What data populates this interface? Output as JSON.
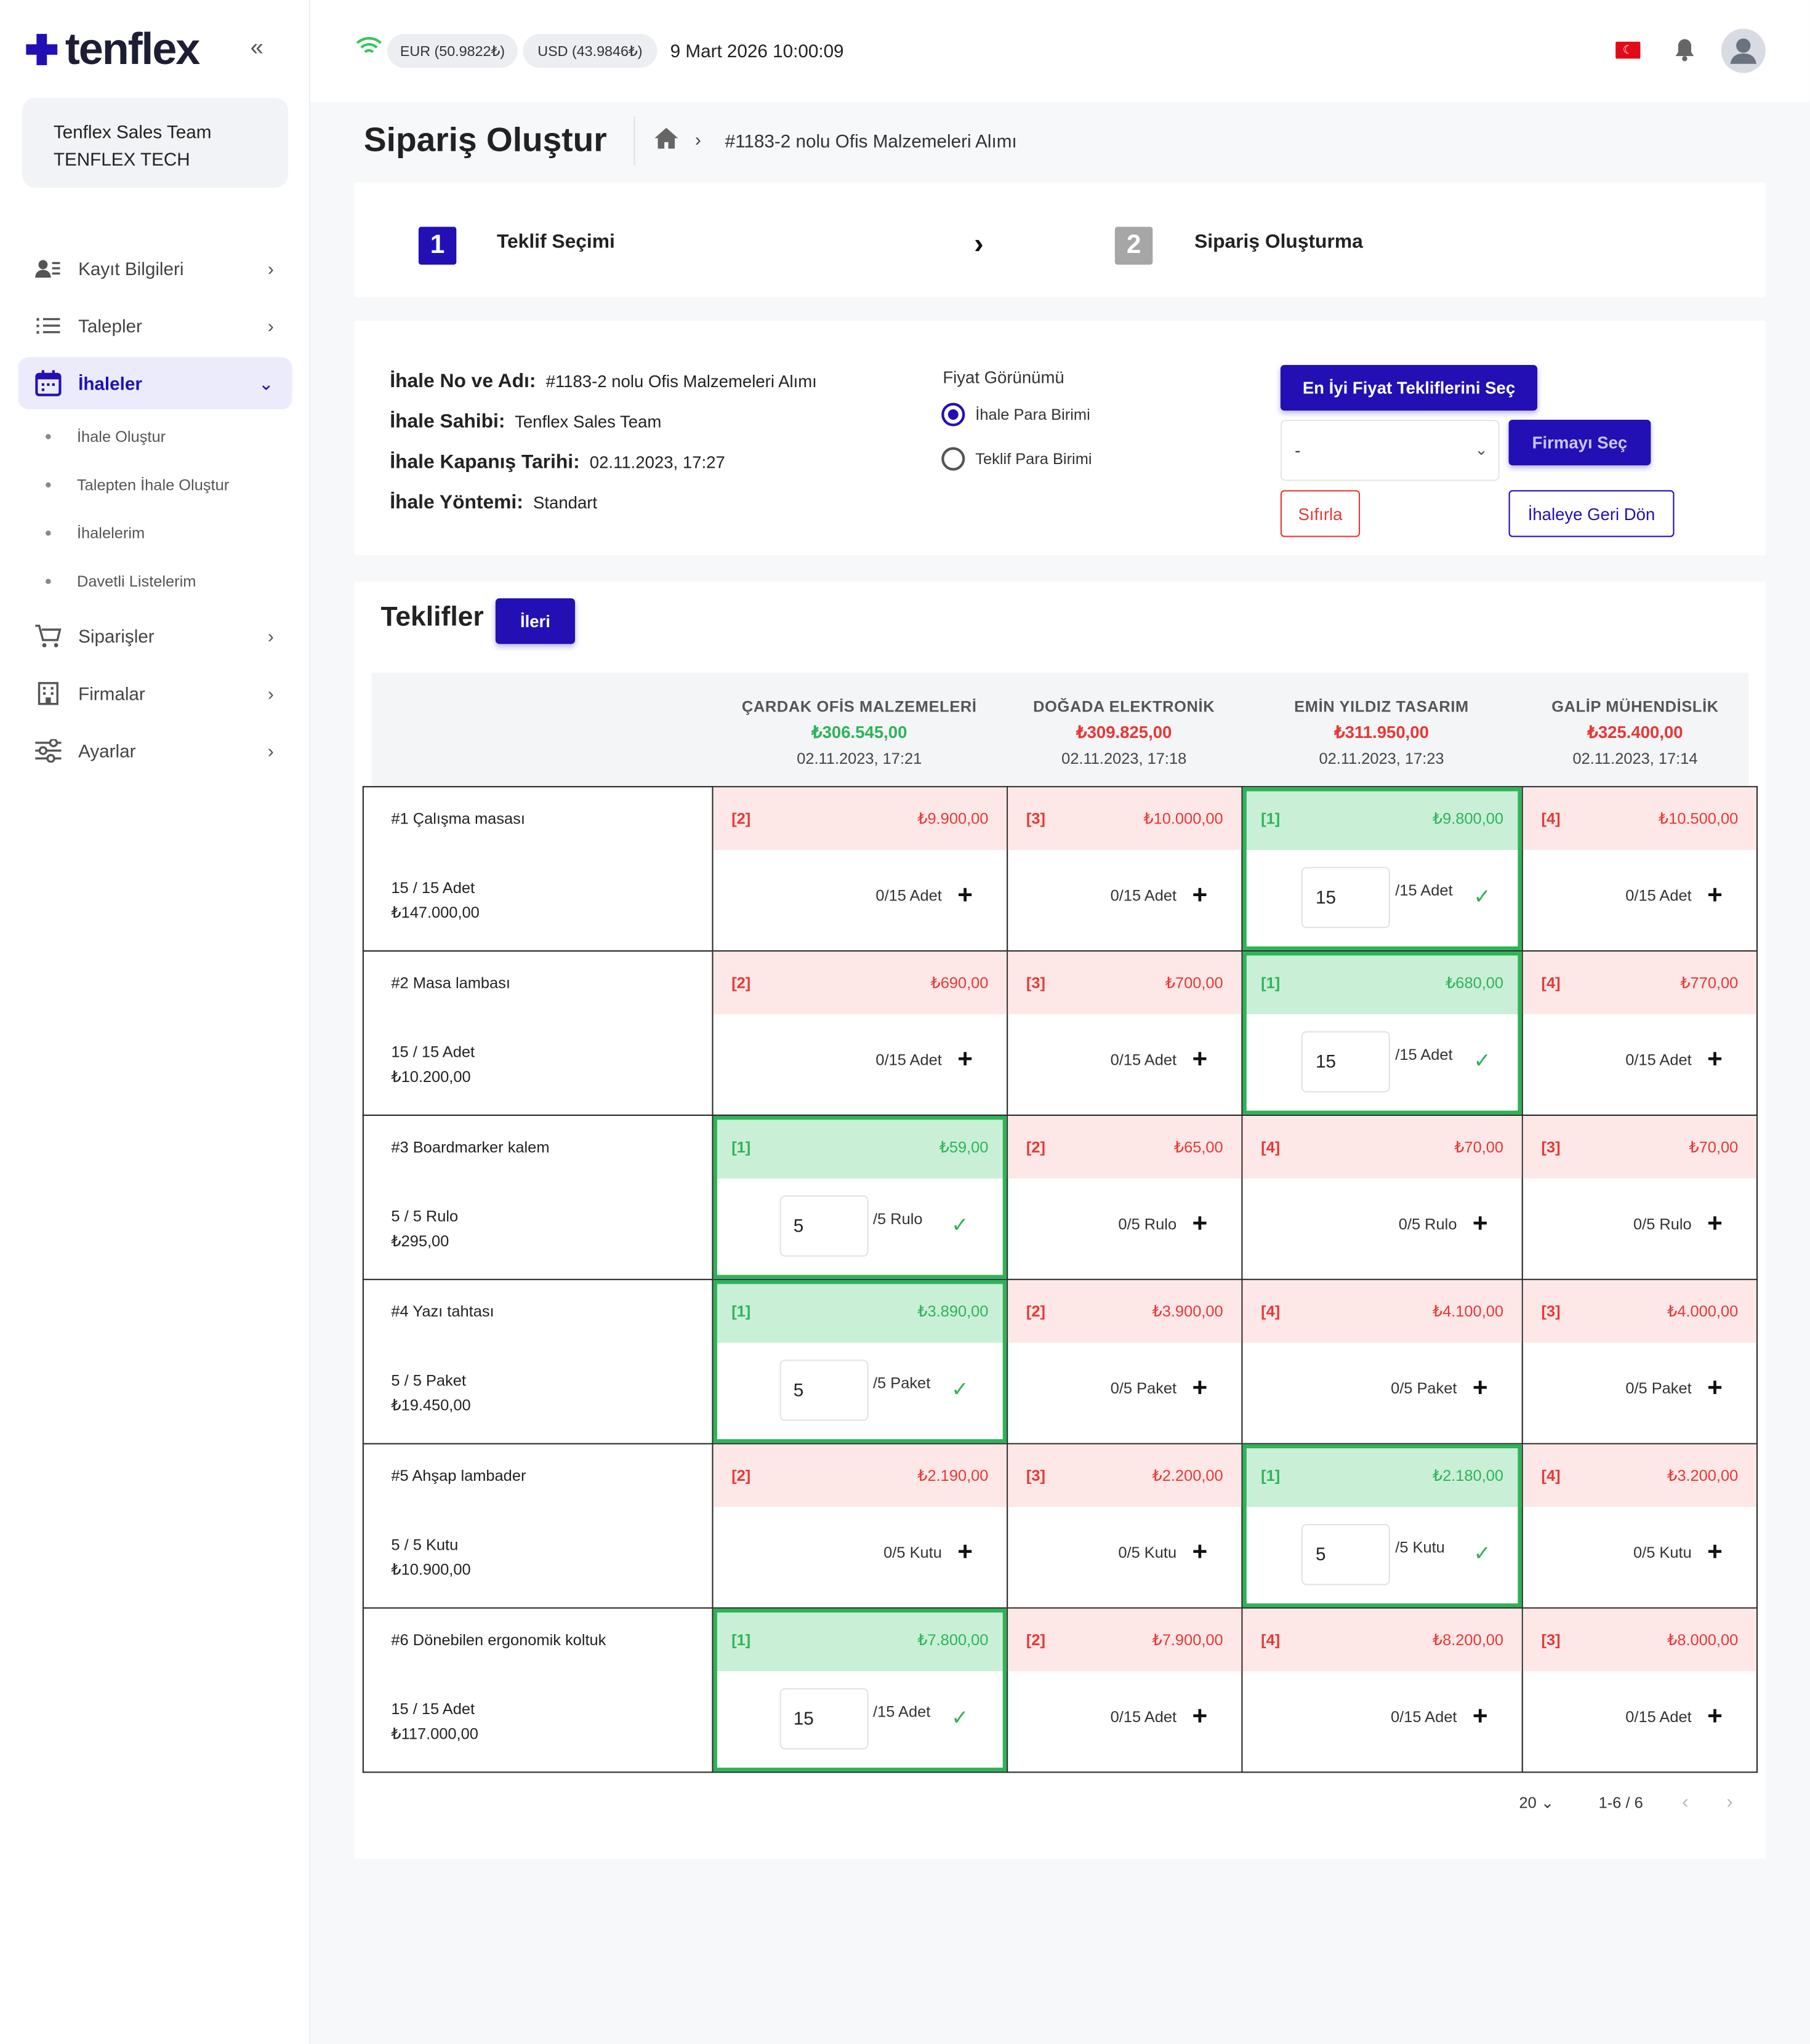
{
  "app": {
    "name": "tenflex"
  },
  "sidebar": {
    "team": {
      "name": "Tenflex Sales Team",
      "org": "TENFLEX TECH"
    },
    "items": [
      {
        "label": "Kayıt Bilgileri"
      },
      {
        "label": "Talepler"
      },
      {
        "label": "İhaleler"
      },
      {
        "label": "Siparişler"
      },
      {
        "label": "Firmalar"
      },
      {
        "label": "Ayarlar"
      }
    ],
    "subitems": [
      "İhale Oluştur",
      "Talepten İhale Oluştur",
      "İhalelerim",
      "Davetli Listelerim"
    ]
  },
  "topbar": {
    "eur": "EUR (50.9822₺)",
    "usd": "USD (43.9846₺)",
    "datetime": "9 Mart 2026 10:00:09"
  },
  "page": {
    "title": "Sipariş Oluştur",
    "breadcrumb": "#1183-2 nolu Ofis Malzemeleri Alımı"
  },
  "steps": [
    {
      "num": "1",
      "label": "Teklif Seçimi"
    },
    {
      "num": "2",
      "label": "Sipariş Oluşturma"
    }
  ],
  "tender": {
    "no_label": "İhale No ve Adı:",
    "no_value": "#1183-2 nolu Ofis Malzemeleri Alımı",
    "owner_label": "İhale Sahibi:",
    "owner_value": "Tenflex Sales Team",
    "close_label": "İhale Kapanış Tarihi:",
    "close_value": "02.11.2023, 17:27",
    "method_label": "İhale Yöntemi:",
    "method_value": "Standart"
  },
  "price_view": {
    "title": "Fiyat Görünümü",
    "options": [
      "İhale Para Birimi",
      "Teklif Para Birimi"
    ],
    "selected": "İhale Para Birimi"
  },
  "actions": {
    "best": "En İyi Fiyat Tekliflerini Seç",
    "firm_select_value": "-",
    "select_firm": "Firmayı Seç",
    "reset": "Sıfırla",
    "back": "İhaleye Geri Dön"
  },
  "offers": {
    "title": "Teklifler",
    "next": "İleri",
    "suppliers": [
      {
        "name": "ÇARDAK OFİS MALZEMELERİ",
        "total": "₺306.545,00",
        "date": "02.11.2023, 17:21"
      },
      {
        "name": "DOĞADA ELEKTRONİK",
        "total": "₺309.825,00",
        "date": "02.11.2023, 17:18"
      },
      {
        "name": "EMİN YILDIZ TASARIM",
        "total": "₺311.950,00",
        "date": "02.11.2023, 17:23"
      },
      {
        "name": "GALİP MÜHENDİSLİK",
        "total": "₺325.400,00",
        "date": "02.11.2023, 17:14"
      }
    ],
    "rows": [
      {
        "name": "#1 Çalışma masası",
        "qty": "15 / 15 Adet",
        "total": "₺147.000,00",
        "cells": [
          {
            "rank": "[2]",
            "price": "₺9.900,00",
            "add": "0/15 Adet"
          },
          {
            "rank": "[3]",
            "price": "₺10.000,00",
            "add": "0/15 Adet"
          },
          {
            "rank": "[1]",
            "price": "₺9.800,00",
            "selected": true,
            "qty": "15",
            "of": "/15 Adet"
          },
          {
            "rank": "[4]",
            "price": "₺10.500,00",
            "add": "0/15 Adet"
          }
        ]
      },
      {
        "name": "#2 Masa lambası",
        "qty": "15 / 15 Adet",
        "total": "₺10.200,00",
        "cells": [
          {
            "rank": "[2]",
            "price": "₺690,00",
            "add": "0/15 Adet"
          },
          {
            "rank": "[3]",
            "price": "₺700,00",
            "add": "0/15 Adet"
          },
          {
            "rank": "[1]",
            "price": "₺680,00",
            "selected": true,
            "qty": "15",
            "of": "/15 Adet"
          },
          {
            "rank": "[4]",
            "price": "₺770,00",
            "add": "0/15 Adet"
          }
        ]
      },
      {
        "name": "#3 Boardmarker kalem",
        "qty": "5 / 5 Rulo",
        "total": "₺295,00",
        "cells": [
          {
            "rank": "[1]",
            "price": "₺59,00",
            "selected": true,
            "qty": "5",
            "of": "/5 Rulo"
          },
          {
            "rank": "[2]",
            "price": "₺65,00",
            "add": "0/5 Rulo"
          },
          {
            "rank": "[4]",
            "price": "₺70,00",
            "add": "0/5 Rulo"
          },
          {
            "rank": "[3]",
            "price": "₺70,00",
            "add": "0/5 Rulo"
          }
        ]
      },
      {
        "name": "#4 Yazı tahtası",
        "qty": "5 / 5 Paket",
        "total": "₺19.450,00",
        "cells": [
          {
            "rank": "[1]",
            "price": "₺3.890,00",
            "selected": true,
            "qty": "5",
            "of": "/5 Paket"
          },
          {
            "rank": "[2]",
            "price": "₺3.900,00",
            "add": "0/5 Paket"
          },
          {
            "rank": "[4]",
            "price": "₺4.100,00",
            "add": "0/5 Paket"
          },
          {
            "rank": "[3]",
            "price": "₺4.000,00",
            "add": "0/5 Paket"
          }
        ]
      },
      {
        "name": "#5 Ahşap lambader",
        "qty": "5 / 5 Kutu",
        "total": "₺10.900,00",
        "cells": [
          {
            "rank": "[2]",
            "price": "₺2.190,00",
            "add": "0/5 Kutu"
          },
          {
            "rank": "[3]",
            "price": "₺2.200,00",
            "add": "0/5 Kutu"
          },
          {
            "rank": "[1]",
            "price": "₺2.180,00",
            "selected": true,
            "qty": "5",
            "of": "/5 Kutu"
          },
          {
            "rank": "[4]",
            "price": "₺3.200,00",
            "add": "0/5 Kutu"
          }
        ]
      },
      {
        "name": "#6 Dönebilen ergonomik koltuk",
        "qty": "15 / 15 Adet",
        "total": "₺117.000,00",
        "cells": [
          {
            "rank": "[1]",
            "price": "₺7.800,00",
            "selected": true,
            "qty": "15",
            "of": "/15 Adet"
          },
          {
            "rank": "[2]",
            "price": "₺7.900,00",
            "add": "0/15 Adet"
          },
          {
            "rank": "[4]",
            "price": "₺8.200,00",
            "add": "0/15 Adet"
          },
          {
            "rank": "[3]",
            "price": "₺8.000,00",
            "add": "0/15 Adet"
          }
        ]
      }
    ]
  },
  "pagination": {
    "page_size": "20",
    "range": "1-6 / 6"
  },
  "colors": {
    "accent": "#2210b4",
    "success": "#2fb35a",
    "danger": "#e53935"
  }
}
